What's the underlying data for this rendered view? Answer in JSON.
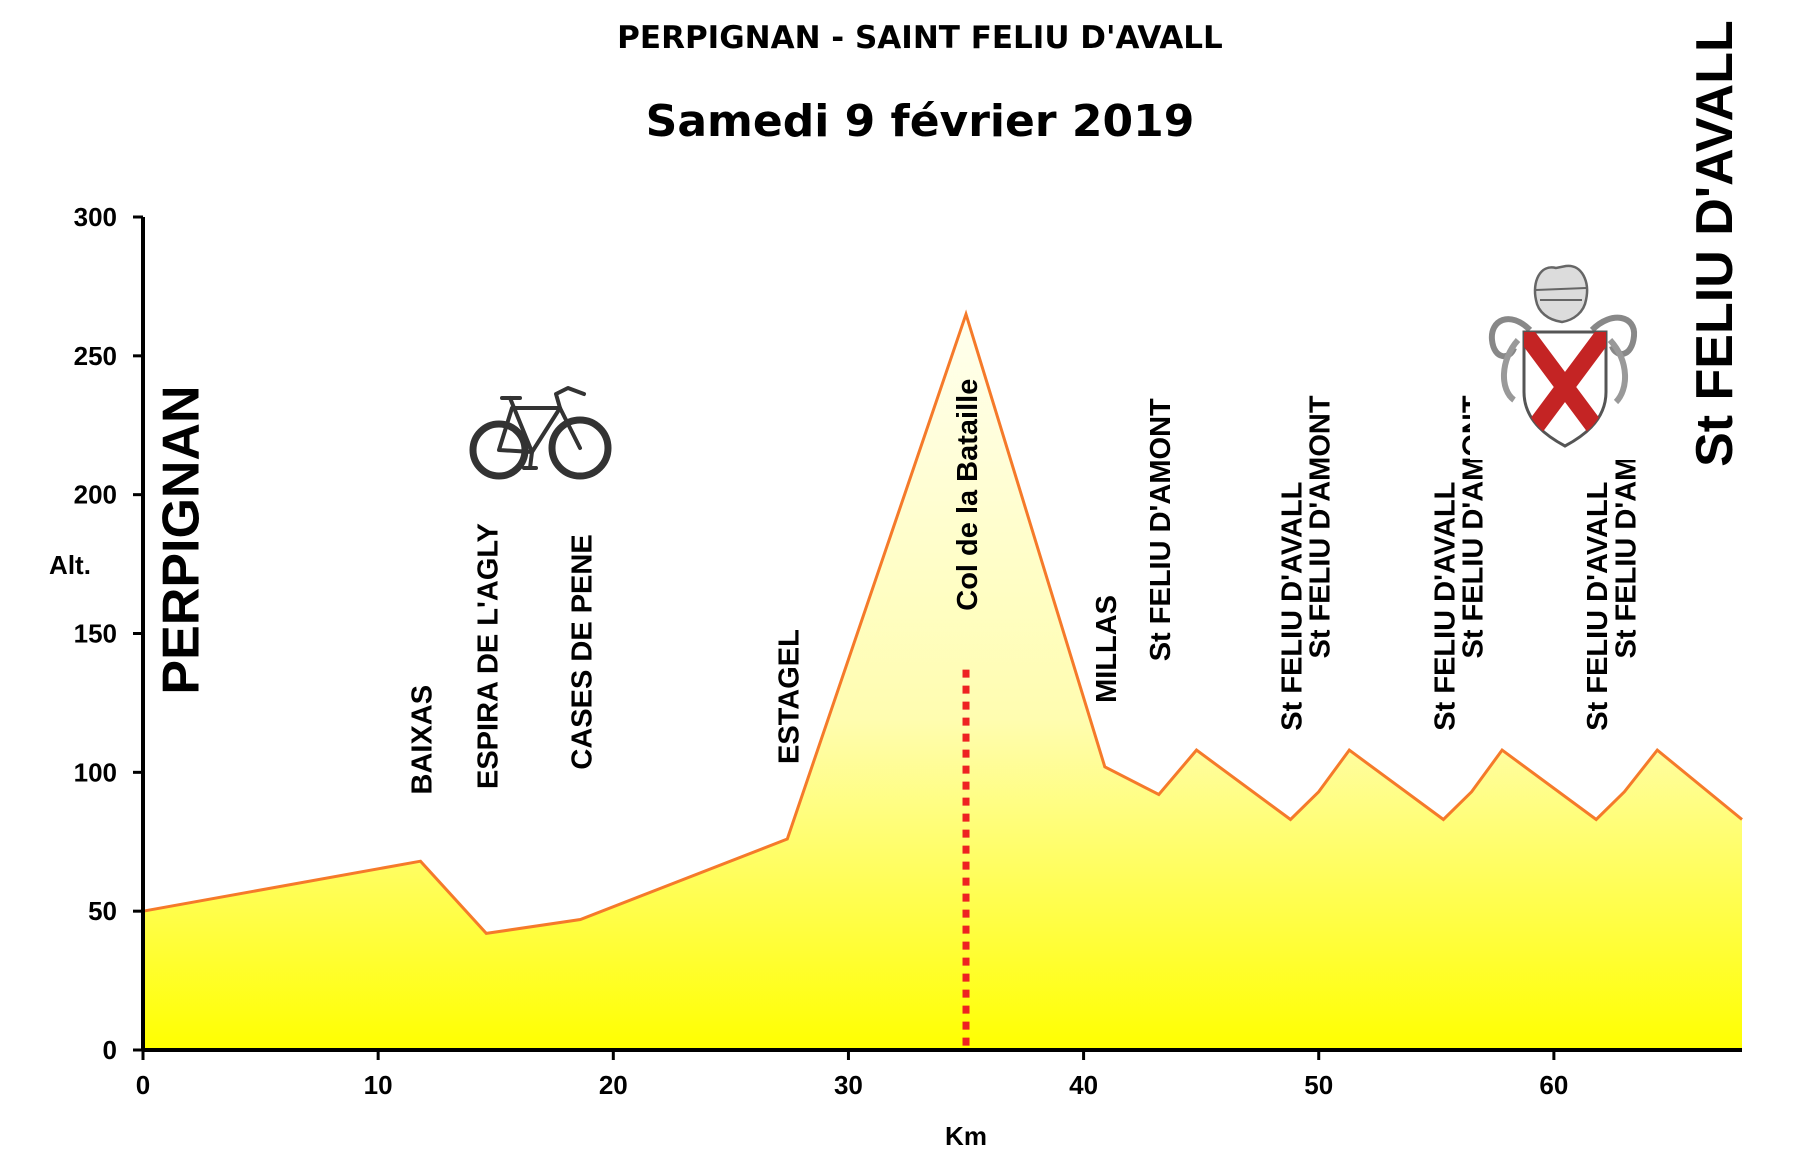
{
  "header": {
    "title": "PERPIGNAN - SAINT FELIU D'AVALL",
    "subtitle": "Samedi 9 février 2019"
  },
  "chart_data": {
    "type": "area",
    "title": "PERPIGNAN - SAINT FELIU D'AVALL",
    "subtitle": "Samedi 9 février 2019",
    "xlabel": "Km",
    "ylabel": "Alt.",
    "xlim": [
      0,
      68
    ],
    "ylim": [
      0,
      300
    ],
    "xticks": [
      0,
      10,
      20,
      30,
      40,
      50,
      60
    ],
    "yticks": [
      0,
      50,
      100,
      150,
      200,
      250,
      300
    ],
    "grid": false,
    "legend": "none",
    "colors": {
      "line": "#f57a2a",
      "fill_top": "#ffffee",
      "fill_bottom": "#ffff00",
      "marker": "#ee2222",
      "axis": "#000000"
    },
    "series": [
      {
        "x": [
          0,
          11.8,
          14.6,
          18.6,
          27.4,
          35.0,
          40.9,
          43.2,
          44.8,
          48.8,
          50.0,
          51.3,
          55.3,
          56.5,
          57.8,
          61.8,
          63.0,
          64.4,
          68
        ],
        "y": [
          50,
          68,
          42,
          47,
          76,
          265,
          102,
          92,
          108,
          83,
          93,
          108,
          83,
          93,
          108,
          83,
          93,
          108,
          83
        ]
      }
    ],
    "annotations": [
      {
        "text": "PERPIGNAN",
        "x": 1.6,
        "y": 128,
        "style": "big"
      },
      {
        "text": "BAIXAS",
        "x": 11.8,
        "y": 92,
        "style": "place"
      },
      {
        "text": "ESPIRA DE L'AGLY",
        "x": 14.6,
        "y": 94,
        "style": "place"
      },
      {
        "text": "CASES DE PENE",
        "x": 18.6,
        "y": 101,
        "style": "place"
      },
      {
        "text": "ESTAGEL",
        "x": 27.4,
        "y": 103,
        "style": "place"
      },
      {
        "text": "Col de la Bataille",
        "x": 35.0,
        "y": 200,
        "style": "place"
      },
      {
        "text": "MILLAS",
        "x": 40.9,
        "y": 125,
        "style": "place"
      },
      {
        "text": "St FELIU D'AMONT",
        "x": 43.2,
        "y": 140,
        "style": "place"
      },
      {
        "text": "St FELIU D'AVALL",
        "x": 48.8,
        "y": 115,
        "style": "place"
      },
      {
        "text": "St FELIU D'AMONT",
        "x": 50.0,
        "y": 141,
        "style": "place"
      },
      {
        "text": "St FELIU D'AVALL",
        "x": 55.3,
        "y": 115,
        "style": "place"
      },
      {
        "text": "St FELIU D'AMONT",
        "x": 56.5,
        "y": 141,
        "style": "place"
      },
      {
        "text": "St FELIU D'AVALL",
        "x": 61.8,
        "y": 115,
        "style": "place"
      },
      {
        "text": "St FELIU D'AMONT",
        "x": 63.0,
        "y": 141,
        "style": "place"
      },
      {
        "text": "St FELIU D'AVALL",
        "x": 66.8,
        "y": 210,
        "style": "big"
      }
    ],
    "marker": {
      "type": "dotted-vertical",
      "x": 35.0,
      "y_from": 0,
      "y_to": 137
    },
    "icons": [
      "bicycle-icon",
      "coat-of-arms-icon"
    ]
  }
}
